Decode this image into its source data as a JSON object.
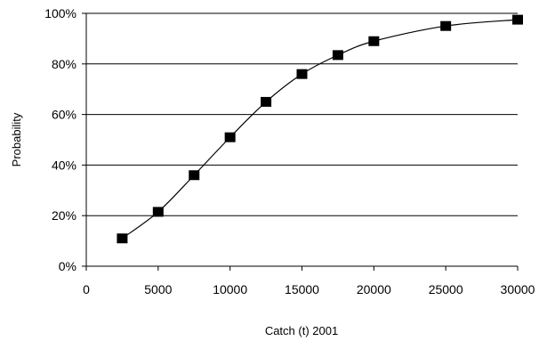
{
  "chart_data": {
    "type": "line",
    "title": "",
    "xlabel": "Catch (t) 2001",
    "ylabel": "Probability",
    "xlim": [
      0,
      30000
    ],
    "ylim": [
      0,
      100
    ],
    "x_ticks": [
      0,
      5000,
      10000,
      15000,
      20000,
      25000,
      30000
    ],
    "x_tick_labels": [
      "0",
      "5000",
      "10000",
      "15000",
      "20000",
      "25000",
      "30000"
    ],
    "y_ticks": [
      0,
      20,
      40,
      60,
      80,
      100
    ],
    "y_tick_labels": [
      "0%",
      "20%",
      "40%",
      "60%",
      "80%",
      "100%"
    ],
    "grid": "horizontal",
    "marker": "square",
    "line_style": "smooth",
    "colors": {
      "series": "#000000",
      "grid": "#000000",
      "axis": "#000000"
    },
    "series": [
      {
        "x": [
          2500,
          5000,
          7500,
          10000,
          12500,
          15000,
          17500,
          20000,
          25000,
          30000
        ],
        "y": [
          11,
          21.5,
          36,
          51,
          65,
          76,
          83.5,
          89,
          95,
          97.5
        ]
      }
    ]
  }
}
